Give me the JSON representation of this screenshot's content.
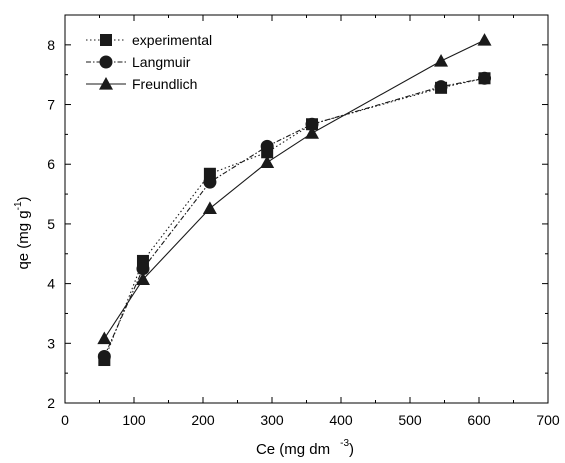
{
  "chart_data": {
    "type": "line",
    "title": "",
    "xlabel": {
      "text": "Ce (mg dm",
      "sup": "-3",
      "close": ")"
    },
    "ylabel": {
      "text": "qe (mg g",
      "sup": "-1",
      "close": ")"
    },
    "xlim": [
      0,
      700
    ],
    "ylim": [
      2,
      8.5
    ],
    "xticks": [
      "0",
      "100",
      "200",
      "300",
      "400",
      "500",
      "600",
      "700"
    ],
    "yticks": [
      "2",
      "3",
      "4",
      "5",
      "6",
      "7",
      "8"
    ],
    "grid": false,
    "legend_position": "top-left",
    "series": [
      {
        "name": "experimental",
        "marker": "square",
        "line_style": "dotted",
        "color": "#1a1a1a",
        "x": [
          57,
          113,
          210,
          293,
          358,
          545,
          608
        ],
        "y": [
          2.72,
          4.38,
          5.84,
          6.2,
          6.67,
          7.28,
          7.44
        ]
      },
      {
        "name": "Langmuir",
        "marker": "circle",
        "line_style": "dash-dot",
        "color": "#1a1a1a",
        "x": [
          57,
          113,
          210,
          293,
          358,
          545,
          608
        ],
        "y": [
          2.78,
          4.25,
          5.7,
          6.3,
          6.67,
          7.3,
          7.44
        ]
      },
      {
        "name": "Freundlich",
        "marker": "triangle",
        "line_style": "solid",
        "color": "#1a1a1a",
        "x": [
          57,
          113,
          210,
          293,
          358,
          545,
          608
        ],
        "y": [
          3.08,
          4.07,
          5.26,
          6.03,
          6.52,
          7.73,
          8.08
        ]
      }
    ]
  }
}
